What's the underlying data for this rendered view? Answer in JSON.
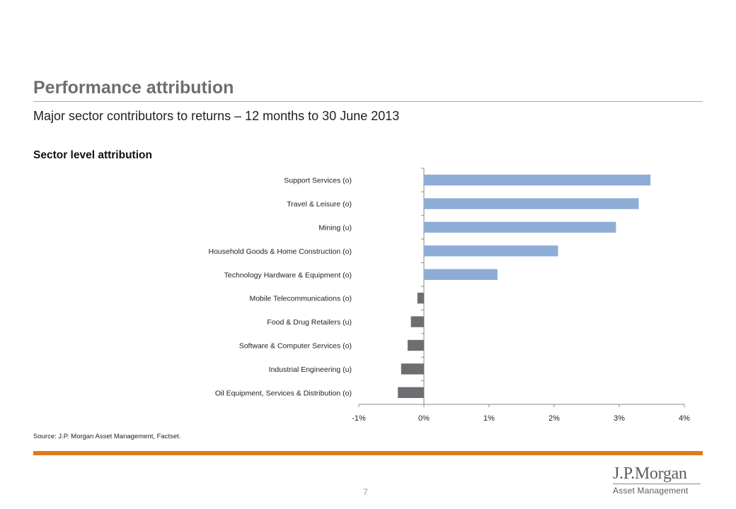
{
  "header": {
    "title": "Performance attribution",
    "subtitle": "Major sector contributors to returns – 12 months to 30 June 2013"
  },
  "chart_title": "Sector level attribution",
  "footer": {
    "source": "Source: J.P. Morgan Asset Management, Factset.",
    "page_number": "7",
    "logo_main": "J.P.Morgan",
    "logo_sub": "Asset Management"
  },
  "colors": {
    "positive_bar": "#8eadd6",
    "negative_bar": "#6d6e71",
    "accent_orange": "#e07b1a",
    "title_gray": "#6d6e71"
  },
  "chart_data": {
    "type": "bar",
    "orientation": "horizontal",
    "title": "Sector level attribution",
    "categories": [
      "Support Services (o)",
      "Travel & Leisure (o)",
      "Mining (u)",
      "Household Goods & Home Construction (o)",
      "Technology Hardware & Equipment (o)",
      "Mobile Telecommunications (o)",
      "Food & Drug Retailers (u)",
      "Software & Computer Services (o)",
      "Industrial Engineering (u)",
      "Oil Equipment, Services & Distribution (o)"
    ],
    "values": [
      3.48,
      3.3,
      2.95,
      2.06,
      1.13,
      -0.1,
      -0.2,
      -0.25,
      -0.35,
      -0.4
    ],
    "x_ticks": [
      "-1%",
      "0%",
      "1%",
      "2%",
      "3%",
      "4%"
    ],
    "xlim": [
      -1,
      4
    ],
    "unit": "%",
    "grid": false,
    "legend": "none"
  }
}
